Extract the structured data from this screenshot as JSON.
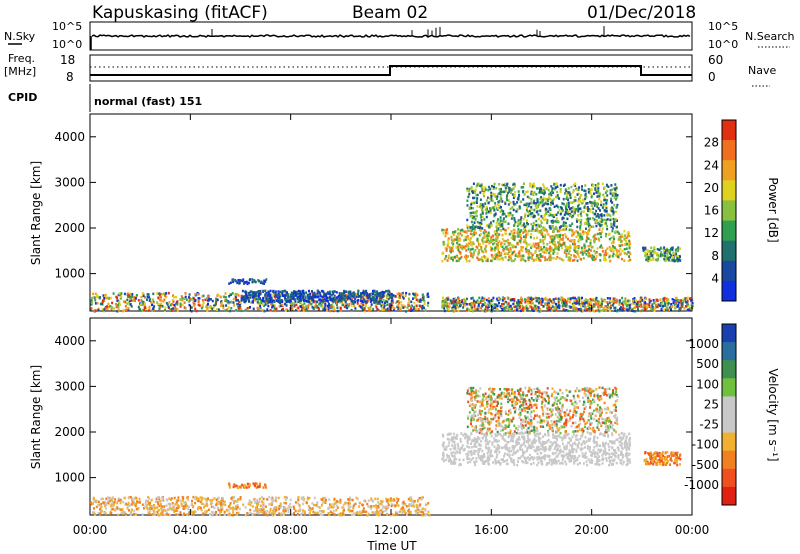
{
  "header": {
    "station": "Kapuskasing (fitACF)",
    "beam": "Beam 02",
    "date": "01/Dec/2018"
  },
  "strip_panels": {
    "nsky_label": "N.Sky",
    "nsky_ticks": [
      "10^5",
      "10^0"
    ],
    "nsearch_label": "N.Search",
    "nsearch_ticks": [
      "10^5",
      "10^0"
    ],
    "freq_label_1": "Freq.",
    "freq_label_2": "[MHz]",
    "freq_ticks": [
      "18",
      "8"
    ],
    "nave_label": "Nave",
    "nave_ticks": [
      "60",
      "0"
    ],
    "cpid_label": "CPID",
    "cpid_value": "normal (fast) 151"
  },
  "colors": {
    "power_scale": [
      "#1030e0",
      "#1848a0",
      "#207070",
      "#30a050",
      "#88c040",
      "#e0d020",
      "#f0a020",
      "#f07020",
      "#e03010"
    ],
    "velocity_scale": [
      "#e02010",
      "#f05020",
      "#f08020",
      "#f0b030",
      "#c8c8c8",
      "#c8c8c8",
      "#70c040",
      "#3f9050",
      "#2a6ea0",
      "#1a40b0"
    ]
  },
  "chart_data": [
    {
      "type": "heatmap",
      "panel": "power",
      "ylabel": "Slant Range [km]",
      "xlabel": "",
      "x_ticks": [
        "00:00",
        "04:00",
        "08:00",
        "12:00",
        "16:00",
        "20:00",
        "00:00"
      ],
      "y_ticks": [
        "1000",
        "2000",
        "3000",
        "4000"
      ],
      "xlim_hours": [
        0,
        24
      ],
      "ylim_km": [
        180,
        4500
      ],
      "colorbar_label": "Power [dB]",
      "colorbar_ticks": [
        "4",
        "8",
        "12",
        "16",
        "20",
        "24",
        "28"
      ],
      "scatter_regions": [
        {
          "t0": 0,
          "t1": 13.5,
          "r0": 200,
          "r1": 600,
          "level": "low-mixed"
        },
        {
          "t0": 5.5,
          "t1": 7,
          "r0": 800,
          "r1": 900,
          "level": "low"
        },
        {
          "t0": 6,
          "t1": 12,
          "r0": 400,
          "r1": 650,
          "level": "low"
        },
        {
          "t0": 14,
          "t1": 21.5,
          "r0": 1300,
          "r1": 2000,
          "level": "high"
        },
        {
          "t0": 15,
          "t1": 21,
          "r0": 2000,
          "r1": 3000,
          "level": "mid"
        },
        {
          "t0": 22,
          "t1": 23.5,
          "r0": 1300,
          "r1": 1600,
          "level": "mid"
        },
        {
          "t0": 14,
          "t1": 24,
          "r0": 200,
          "r1": 500,
          "level": "low-mixed"
        }
      ]
    },
    {
      "type": "heatmap",
      "panel": "velocity",
      "ylabel": "Slant Range [km]",
      "xlabel": "Time UT",
      "x_ticks": [
        "00:00",
        "04:00",
        "08:00",
        "12:00",
        "16:00",
        "20:00",
        "00:00"
      ],
      "y_ticks": [
        "1000",
        "2000",
        "3000",
        "4000"
      ],
      "xlim_hours": [
        0,
        24
      ],
      "ylim_km": [
        180,
        4500
      ],
      "colorbar_label": "Velocity [m s⁻¹]",
      "colorbar_ticks": [
        "1000",
        "500",
        "100",
        "25",
        "-25",
        "-100",
        "-500",
        "-1000"
      ],
      "scatter_regions": [
        {
          "t0": 0,
          "t1": 13.5,
          "r0": 200,
          "r1": 600,
          "level": "negative"
        },
        {
          "t0": 5.5,
          "t1": 7,
          "r0": 800,
          "r1": 900,
          "level": "negative-strong"
        },
        {
          "t0": 14,
          "t1": 21.5,
          "r0": 1300,
          "r1": 2000,
          "level": "ground"
        },
        {
          "t0": 15,
          "t1": 21,
          "r0": 2000,
          "r1": 3000,
          "level": "mixed"
        },
        {
          "t0": 22,
          "t1": 23.5,
          "r0": 1300,
          "r1": 1600,
          "level": "negative-strong"
        }
      ]
    }
  ]
}
